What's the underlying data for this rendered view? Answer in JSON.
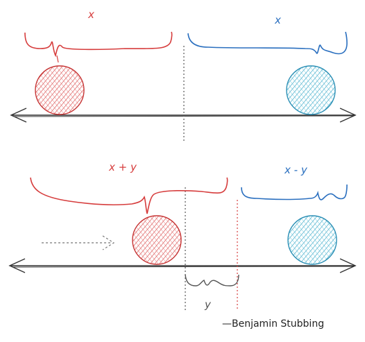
{
  "colors": {
    "red": "#d63c3c",
    "blue": "#2a6fbf",
    "cyan_fill": "#3fb6cf",
    "red_fill": "#e65a5a",
    "axis": "#333333",
    "guide": "#555555"
  },
  "top": {
    "left_label": "x",
    "right_label": "x"
  },
  "bottom": {
    "left_label": "x + y",
    "right_label": "x - y",
    "gap_label": "y"
  },
  "signature": "—Benjamin Stubbing"
}
